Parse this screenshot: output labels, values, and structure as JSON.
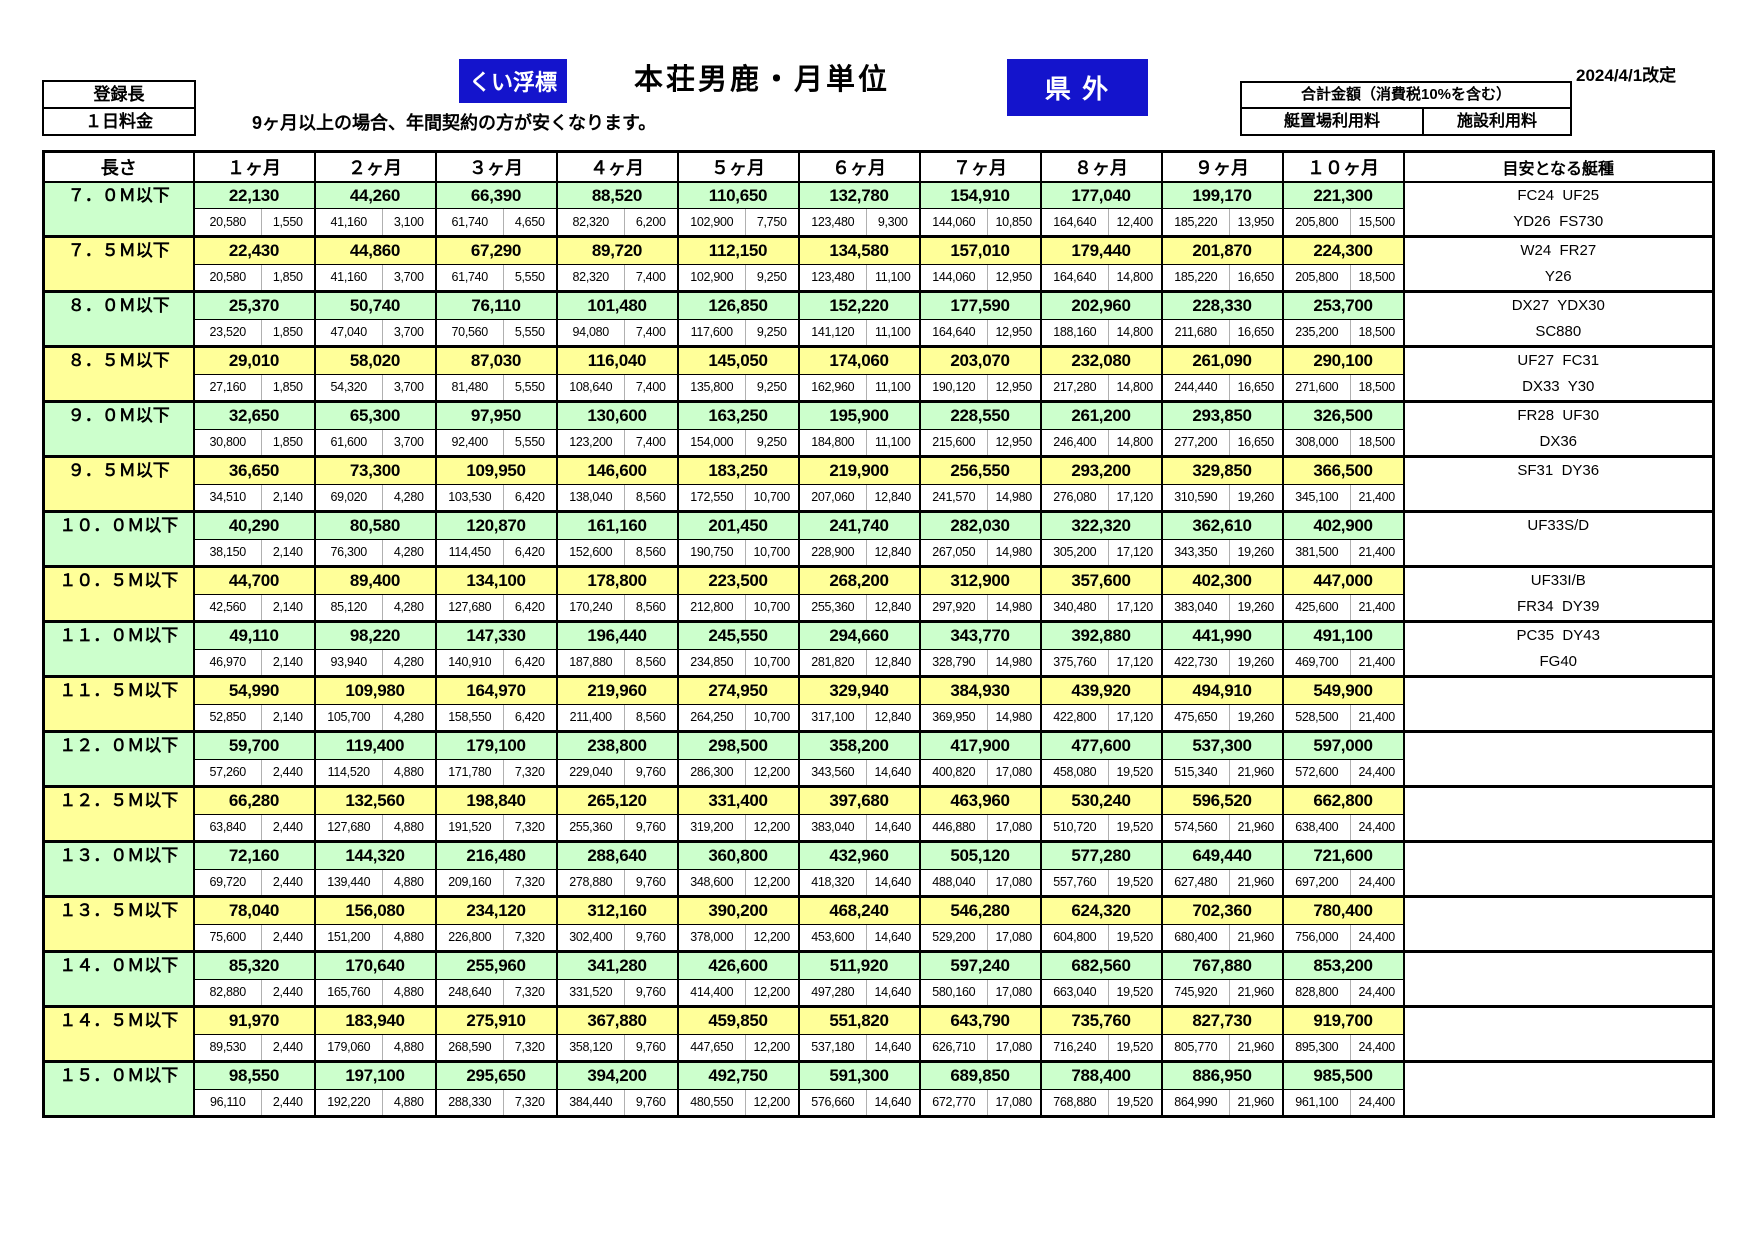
{
  "header": {
    "registered_length": "登録長",
    "daily_fee": "１日料金",
    "mooring_type_badge": "くい浮標",
    "title": "本荘男鹿・月単位",
    "region_badge": "県 外",
    "revision_date": "2024/4/1改定",
    "note": "9ヶ月以上の場合、年間契約の方が安くなります。",
    "total_box": {
      "title": "合計金額（消費税10%を含む）",
      "berth_fee": "艇置場利用料",
      "facility_fee": "施設利用料"
    }
  },
  "colors": {
    "row_green": "#ccffcc",
    "row_yellow": "#ffff99",
    "badge_blue": "#1414cc"
  },
  "table": {
    "columns": [
      "長さ",
      "１ヶ月",
      "２ヶ月",
      "３ヶ月",
      "４ヶ月",
      "５ヶ月",
      "６ヶ月",
      "７ヶ月",
      "８ヶ月",
      "９ヶ月",
      "１０ヶ月",
      "目安となる艇種"
    ],
    "rows": [
      {
        "len": "７．０Ｍ以下",
        "color": "g",
        "t": [
          "22,130",
          "44,260",
          "66,390",
          "88,520",
          "110,650",
          "132,780",
          "154,910",
          "177,040",
          "199,170",
          "221,300"
        ],
        "a": [
          "20,580",
          "41,160",
          "61,740",
          "82,320",
          "102,900",
          "123,480",
          "144,060",
          "164,640",
          "185,220",
          "205,800"
        ],
        "b": [
          "1,550",
          "3,100",
          "4,650",
          "6,200",
          "7,750",
          "9,300",
          "10,850",
          "12,400",
          "13,950",
          "15,500"
        ],
        "boats": [
          "FC24  UF25",
          "YD26  FS730"
        ]
      },
      {
        "len": "７．５Ｍ以下",
        "color": "y",
        "t": [
          "22,430",
          "44,860",
          "67,290",
          "89,720",
          "112,150",
          "134,580",
          "157,010",
          "179,440",
          "201,870",
          "224,300"
        ],
        "a": [
          "20,580",
          "41,160",
          "61,740",
          "82,320",
          "102,900",
          "123,480",
          "144,060",
          "164,640",
          "185,220",
          "205,800"
        ],
        "b": [
          "1,850",
          "3,700",
          "5,550",
          "7,400",
          "9,250",
          "11,100",
          "12,950",
          "14,800",
          "16,650",
          "18,500"
        ],
        "boats": [
          "W24  FR27",
          "Y26"
        ]
      },
      {
        "len": "８．０Ｍ以下",
        "color": "g",
        "t": [
          "25,370",
          "50,740",
          "76,110",
          "101,480",
          "126,850",
          "152,220",
          "177,590",
          "202,960",
          "228,330",
          "253,700"
        ],
        "a": [
          "23,520",
          "47,040",
          "70,560",
          "94,080",
          "117,600",
          "141,120",
          "164,640",
          "188,160",
          "211,680",
          "235,200"
        ],
        "b": [
          "1,850",
          "3,700",
          "5,550",
          "7,400",
          "9,250",
          "11,100",
          "12,950",
          "14,800",
          "16,650",
          "18,500"
        ],
        "boats": [
          "DX27  YDX30",
          "SC880"
        ]
      },
      {
        "len": "８．５Ｍ以下",
        "color": "y",
        "t": [
          "29,010",
          "58,020",
          "87,030",
          "116,040",
          "145,050",
          "174,060",
          "203,070",
          "232,080",
          "261,090",
          "290,100"
        ],
        "a": [
          "27,160",
          "54,320",
          "81,480",
          "108,640",
          "135,800",
          "162,960",
          "190,120",
          "217,280",
          "244,440",
          "271,600"
        ],
        "b": [
          "1,850",
          "3,700",
          "5,550",
          "7,400",
          "9,250",
          "11,100",
          "12,950",
          "14,800",
          "16,650",
          "18,500"
        ],
        "boats": [
          "UF27  FC31",
          "DX33  Y30"
        ]
      },
      {
        "len": "９．０Ｍ以下",
        "color": "g",
        "t": [
          "32,650",
          "65,300",
          "97,950",
          "130,600",
          "163,250",
          "195,900",
          "228,550",
          "261,200",
          "293,850",
          "326,500"
        ],
        "a": [
          "30,800",
          "61,600",
          "92,400",
          "123,200",
          "154,000",
          "184,800",
          "215,600",
          "246,400",
          "277,200",
          "308,000"
        ],
        "b": [
          "1,850",
          "3,700",
          "5,550",
          "7,400",
          "9,250",
          "11,100",
          "12,950",
          "14,800",
          "16,650",
          "18,500"
        ],
        "boats": [
          "FR28  UF30",
          "DX36"
        ]
      },
      {
        "len": "９．５Ｍ以下",
        "color": "y",
        "t": [
          "36,650",
          "73,300",
          "109,950",
          "146,600",
          "183,250",
          "219,900",
          "256,550",
          "293,200",
          "329,850",
          "366,500"
        ],
        "a": [
          "34,510",
          "69,020",
          "103,530",
          "138,040",
          "172,550",
          "207,060",
          "241,570",
          "276,080",
          "310,590",
          "345,100"
        ],
        "b": [
          "2,140",
          "4,280",
          "6,420",
          "8,560",
          "10,700",
          "12,840",
          "14,980",
          "17,120",
          "19,260",
          "21,400"
        ],
        "boats": [
          "SF31  DY36",
          ""
        ]
      },
      {
        "len": "１０．０Ｍ以下",
        "color": "g",
        "t": [
          "40,290",
          "80,580",
          "120,870",
          "161,160",
          "201,450",
          "241,740",
          "282,030",
          "322,320",
          "362,610",
          "402,900"
        ],
        "a": [
          "38,150",
          "76,300",
          "114,450",
          "152,600",
          "190,750",
          "228,900",
          "267,050",
          "305,200",
          "343,350",
          "381,500"
        ],
        "b": [
          "2,140",
          "4,280",
          "6,420",
          "8,560",
          "10,700",
          "12,840",
          "14,980",
          "17,120",
          "19,260",
          "21,400"
        ],
        "boats": [
          "UF33S/D",
          ""
        ]
      },
      {
        "len": "１０．５Ｍ以下",
        "color": "y",
        "t": [
          "44,700",
          "89,400",
          "134,100",
          "178,800",
          "223,500",
          "268,200",
          "312,900",
          "357,600",
          "402,300",
          "447,000"
        ],
        "a": [
          "42,560",
          "85,120",
          "127,680",
          "170,240",
          "212,800",
          "255,360",
          "297,920",
          "340,480",
          "383,040",
          "425,600"
        ],
        "b": [
          "2,140",
          "4,280",
          "6,420",
          "8,560",
          "10,700",
          "12,840",
          "14,980",
          "17,120",
          "19,260",
          "21,400"
        ],
        "boats": [
          "UF33I/B",
          "FR34  DY39"
        ]
      },
      {
        "len": "１１．０Ｍ以下",
        "color": "g",
        "t": [
          "49,110",
          "98,220",
          "147,330",
          "196,440",
          "245,550",
          "294,660",
          "343,770",
          "392,880",
          "441,990",
          "491,100"
        ],
        "a": [
          "46,970",
          "93,940",
          "140,910",
          "187,880",
          "234,850",
          "281,820",
          "328,790",
          "375,760",
          "422,730",
          "469,700"
        ],
        "b": [
          "2,140",
          "4,280",
          "6,420",
          "8,560",
          "10,700",
          "12,840",
          "14,980",
          "17,120",
          "19,260",
          "21,400"
        ],
        "boats": [
          "PC35  DY43",
          "FG40"
        ]
      },
      {
        "len": "１１．５Ｍ以下",
        "color": "y",
        "t": [
          "54,990",
          "109,980",
          "164,970",
          "219,960",
          "274,950",
          "329,940",
          "384,930",
          "439,920",
          "494,910",
          "549,900"
        ],
        "a": [
          "52,850",
          "105,700",
          "158,550",
          "211,400",
          "264,250",
          "317,100",
          "369,950",
          "422,800",
          "475,650",
          "528,500"
        ],
        "b": [
          "2,140",
          "4,280",
          "6,420",
          "8,560",
          "10,700",
          "12,840",
          "14,980",
          "17,120",
          "19,260",
          "21,400"
        ],
        "boats": [
          "",
          ""
        ]
      },
      {
        "len": "１２．０Ｍ以下",
        "color": "g",
        "t": [
          "59,700",
          "119,400",
          "179,100",
          "238,800",
          "298,500",
          "358,200",
          "417,900",
          "477,600",
          "537,300",
          "597,000"
        ],
        "a": [
          "57,260",
          "114,520",
          "171,780",
          "229,040",
          "286,300",
          "343,560",
          "400,820",
          "458,080",
          "515,340",
          "572,600"
        ],
        "b": [
          "2,440",
          "4,880",
          "7,320",
          "9,760",
          "12,200",
          "14,640",
          "17,080",
          "19,520",
          "21,960",
          "24,400"
        ],
        "boats": [
          "",
          ""
        ]
      },
      {
        "len": "１２．５Ｍ以下",
        "color": "y",
        "t": [
          "66,280",
          "132,560",
          "198,840",
          "265,120",
          "331,400",
          "397,680",
          "463,960",
          "530,240",
          "596,520",
          "662,800"
        ],
        "a": [
          "63,840",
          "127,680",
          "191,520",
          "255,360",
          "319,200",
          "383,040",
          "446,880",
          "510,720",
          "574,560",
          "638,400"
        ],
        "b": [
          "2,440",
          "4,880",
          "7,320",
          "9,760",
          "12,200",
          "14,640",
          "17,080",
          "19,520",
          "21,960",
          "24,400"
        ],
        "boats": [
          "",
          ""
        ]
      },
      {
        "len": "１３．０Ｍ以下",
        "color": "g",
        "t": [
          "72,160",
          "144,320",
          "216,480",
          "288,640",
          "360,800",
          "432,960",
          "505,120",
          "577,280",
          "649,440",
          "721,600"
        ],
        "a": [
          "69,720",
          "139,440",
          "209,160",
          "278,880",
          "348,600",
          "418,320",
          "488,040",
          "557,760",
          "627,480",
          "697,200"
        ],
        "b": [
          "2,440",
          "4,880",
          "7,320",
          "9,760",
          "12,200",
          "14,640",
          "17,080",
          "19,520",
          "21,960",
          "24,400"
        ],
        "boats": [
          "",
          ""
        ]
      },
      {
        "len": "１３．５Ｍ以下",
        "color": "y",
        "t": [
          "78,040",
          "156,080",
          "234,120",
          "312,160",
          "390,200",
          "468,240",
          "546,280",
          "624,320",
          "702,360",
          "780,400"
        ],
        "a": [
          "75,600",
          "151,200",
          "226,800",
          "302,400",
          "378,000",
          "453,600",
          "529,200",
          "604,800",
          "680,400",
          "756,000"
        ],
        "b": [
          "2,440",
          "4,880",
          "7,320",
          "9,760",
          "12,200",
          "14,640",
          "17,080",
          "19,520",
          "21,960",
          "24,400"
        ],
        "boats": [
          "",
          ""
        ]
      },
      {
        "len": "１４．０Ｍ以下",
        "color": "g",
        "t": [
          "85,320",
          "170,640",
          "255,960",
          "341,280",
          "426,600",
          "511,920",
          "597,240",
          "682,560",
          "767,880",
          "853,200"
        ],
        "a": [
          "82,880",
          "165,760",
          "248,640",
          "331,520",
          "414,400",
          "497,280",
          "580,160",
          "663,040",
          "745,920",
          "828,800"
        ],
        "b": [
          "2,440",
          "4,880",
          "7,320",
          "9,760",
          "12,200",
          "14,640",
          "17,080",
          "19,520",
          "21,960",
          "24,400"
        ],
        "boats": [
          "",
          ""
        ]
      },
      {
        "len": "１４．５Ｍ以下",
        "color": "y",
        "t": [
          "91,970",
          "183,940",
          "275,910",
          "367,880",
          "459,850",
          "551,820",
          "643,790",
          "735,760",
          "827,730",
          "919,700"
        ],
        "a": [
          "89,530",
          "179,060",
          "268,590",
          "358,120",
          "447,650",
          "537,180",
          "626,710",
          "716,240",
          "805,770",
          "895,300"
        ],
        "b": [
          "2,440",
          "4,880",
          "7,320",
          "9,760",
          "12,200",
          "14,640",
          "17,080",
          "19,520",
          "21,960",
          "24,400"
        ],
        "boats": [
          "",
          ""
        ]
      },
      {
        "len": "１５．０Ｍ以下",
        "color": "g",
        "t": [
          "98,550",
          "197,100",
          "295,650",
          "394,200",
          "492,750",
          "591,300",
          "689,850",
          "788,400",
          "886,950",
          "985,500"
        ],
        "a": [
          "96,110",
          "192,220",
          "288,330",
          "384,440",
          "480,550",
          "576,660",
          "672,770",
          "768,880",
          "864,990",
          "961,100"
        ],
        "b": [
          "2,440",
          "4,880",
          "7,320",
          "9,760",
          "12,200",
          "14,640",
          "17,080",
          "19,520",
          "21,960",
          "24,400"
        ],
        "boats": [
          "",
          ""
        ]
      }
    ]
  }
}
